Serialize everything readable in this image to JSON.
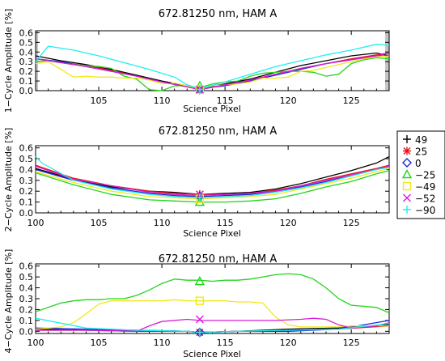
{
  "chart_data": [
    {
      "type": "line",
      "title": "672.81250 nm, HAM A",
      "xlabel": "Science Pixel",
      "ylabel": "1−Cycle Amplitude [%]",
      "xlim": [
        100,
        128
      ],
      "ylim": [
        0,
        0.62
      ],
      "xticks": [
        "105",
        "110",
        "115",
        "120",
        "125"
      ],
      "yticks": [
        "0.0",
        "0.1",
        "0.2",
        "0.3",
        "0.4",
        "0.5",
        "0.6"
      ],
      "series": [
        {
          "name": "49",
          "color": "#000000",
          "x": [
            100,
            102,
            104,
            106,
            108,
            110,
            112,
            113,
            115,
            117,
            119,
            121,
            123,
            125,
            127,
            128
          ],
          "y": [
            0.36,
            0.31,
            0.27,
            0.22,
            0.16,
            0.1,
            0.05,
            0.02,
            0.07,
            0.12,
            0.19,
            0.26,
            0.31,
            0.36,
            0.39,
            0.36
          ],
          "marker": {
            "x": 113,
            "y": 0.01
          }
        },
        {
          "name": "25",
          "color": "#e8121c",
          "x": [
            100,
            102,
            104,
            106,
            108,
            110,
            112,
            113,
            115,
            117,
            119,
            121,
            123,
            125,
            127,
            128
          ],
          "y": [
            0.33,
            0.29,
            0.26,
            0.21,
            0.15,
            0.09,
            0.04,
            0.01,
            0.06,
            0.11,
            0.17,
            0.23,
            0.28,
            0.33,
            0.37,
            0.39
          ],
          "marker": {
            "x": 113,
            "y": 0.01
          }
        },
        {
          "name": "0",
          "color": "#1a2ad8",
          "x": [
            100,
            102,
            104,
            106,
            108,
            110,
            112,
            113,
            115,
            117,
            119,
            121,
            123,
            125,
            127,
            128
          ],
          "y": [
            0.33,
            0.3,
            0.25,
            0.2,
            0.15,
            0.09,
            0.04,
            0.02,
            0.05,
            0.1,
            0.16,
            0.22,
            0.28,
            0.32,
            0.36,
            0.36
          ],
          "marker": {
            "x": 113,
            "y": 0.01
          }
        },
        {
          "name": "−25",
          "color": "#22d41c",
          "x": [
            100,
            101,
            103,
            105,
            106,
            107,
            108,
            109,
            110,
            111,
            112,
            113,
            114,
            115,
            116,
            117,
            118,
            119,
            120,
            121,
            122,
            123,
            124,
            125,
            126,
            127,
            128
          ],
          "y": [
            0.3,
            0.31,
            0.27,
            0.25,
            0.23,
            0.15,
            0.12,
            0.01,
            0.0,
            0.05,
            0.05,
            0.03,
            0.07,
            0.09,
            0.1,
            0.15,
            0.18,
            0.19,
            0.2,
            0.2,
            0.19,
            0.15,
            0.17,
            0.28,
            0.32,
            0.34,
            0.33
          ],
          "marker": {
            "x": 113,
            "y": 0.05
          }
        },
        {
          "name": "−49",
          "color": "#f3e818",
          "x": [
            100,
            101,
            102,
            103,
            104,
            105,
            106,
            107,
            108,
            109,
            110,
            111,
            112,
            113,
            114,
            115,
            116,
            117,
            118,
            119,
            120,
            121,
            122,
            123,
            124,
            125,
            126,
            127,
            128
          ],
          "y": [
            0.28,
            0.3,
            0.22,
            0.14,
            0.15,
            0.14,
            0.14,
            0.13,
            0.13,
            0.11,
            0.07,
            0.08,
            0.05,
            0.02,
            0.05,
            0.06,
            0.07,
            0.09,
            0.13,
            0.13,
            0.14,
            0.2,
            0.21,
            0.24,
            0.27,
            0.3,
            0.33,
            0.35,
            0.36
          ],
          "marker": {
            "x": 113,
            "y": 0.01
          }
        },
        {
          "name": "−52",
          "color": "#d81cd8",
          "x": [
            100,
            102,
            104,
            106,
            108,
            110,
            112,
            113,
            115,
            117,
            119,
            121,
            123,
            125,
            127,
            128
          ],
          "y": [
            0.33,
            0.29,
            0.25,
            0.2,
            0.15,
            0.09,
            0.04,
            0.01,
            0.06,
            0.11,
            0.17,
            0.23,
            0.28,
            0.32,
            0.36,
            0.39
          ],
          "marker": {
            "x": 113,
            "y": 0.01
          }
        },
        {
          "name": "−90",
          "color": "#1ef0f0",
          "x": [
            100,
            101,
            103,
            105,
            107,
            109,
            111,
            112,
            113,
            115,
            117,
            119,
            121,
            123,
            125,
            127,
            128
          ],
          "y": [
            0.3,
            0.46,
            0.42,
            0.36,
            0.29,
            0.22,
            0.14,
            0.06,
            0.02,
            0.09,
            0.17,
            0.25,
            0.31,
            0.37,
            0.42,
            0.48,
            0.47
          ],
          "marker": {
            "x": 113,
            "y": 0.01
          }
        }
      ]
    },
    {
      "type": "line",
      "title": "672.81250 nm, HAM A",
      "xlabel": "Science Pixel",
      "ylabel": "2−Cycle Amplitude [%]",
      "xlim": [
        100,
        128
      ],
      "ylim": [
        0,
        0.62
      ],
      "xticks": [
        "100",
        "105",
        "110",
        "115",
        "120",
        "125"
      ],
      "yticks": [
        "0.0",
        "0.1",
        "0.2",
        "0.3",
        "0.4",
        "0.5",
        "0.6"
      ],
      "series": [
        {
          "name": "49",
          "color": "#000000",
          "x": [
            100,
            103,
            106,
            109,
            111,
            113,
            115,
            117,
            119,
            121,
            123,
            125,
            127,
            128
          ],
          "y": [
            0.41,
            0.31,
            0.24,
            0.2,
            0.19,
            0.17,
            0.18,
            0.19,
            0.22,
            0.27,
            0.33,
            0.39,
            0.46,
            0.52
          ],
          "marker": {
            "x": 113,
            "y": 0.17
          }
        },
        {
          "name": "25",
          "color": "#e8121c",
          "x": [
            100,
            103,
            106,
            109,
            111,
            113,
            115,
            117,
            119,
            121,
            123,
            125,
            127,
            128
          ],
          "y": [
            0.44,
            0.32,
            0.25,
            0.2,
            0.18,
            0.17,
            0.17,
            0.18,
            0.21,
            0.25,
            0.31,
            0.36,
            0.41,
            0.44
          ],
          "marker": {
            "x": 113,
            "y": 0.17
          }
        },
        {
          "name": "0",
          "color": "#1a2ad8",
          "x": [
            100,
            103,
            106,
            109,
            111,
            113,
            115,
            117,
            119,
            121,
            123,
            125,
            127,
            128
          ],
          "y": [
            0.4,
            0.3,
            0.23,
            0.18,
            0.16,
            0.15,
            0.16,
            0.17,
            0.2,
            0.24,
            0.29,
            0.35,
            0.4,
            0.43
          ],
          "marker": {
            "x": 113,
            "y": 0.15
          }
        },
        {
          "name": "−25",
          "color": "#22d41c",
          "x": [
            100,
            103,
            106,
            109,
            111,
            113,
            115,
            117,
            119,
            121,
            123,
            125,
            127,
            128
          ],
          "y": [
            0.37,
            0.26,
            0.17,
            0.12,
            0.11,
            0.1,
            0.1,
            0.11,
            0.13,
            0.18,
            0.24,
            0.29,
            0.36,
            0.39
          ],
          "marker": {
            "x": 113,
            "y": 0.1
          }
        },
        {
          "name": "−49",
          "color": "#f3e818",
          "x": [
            100,
            103,
            106,
            109,
            111,
            113,
            115,
            117,
            119,
            121,
            123,
            125,
            127,
            128
          ],
          "y": [
            0.38,
            0.28,
            0.2,
            0.15,
            0.14,
            0.13,
            0.14,
            0.15,
            0.17,
            0.22,
            0.27,
            0.32,
            0.38,
            0.41
          ],
          "marker": {
            "x": 113,
            "y": 0.13
          }
        },
        {
          "name": "−52",
          "color": "#d81cd8",
          "x": [
            100,
            103,
            106,
            109,
            111,
            113,
            115,
            117,
            119,
            121,
            123,
            125,
            127,
            128
          ],
          "y": [
            0.43,
            0.31,
            0.25,
            0.19,
            0.17,
            0.16,
            0.17,
            0.18,
            0.2,
            0.25,
            0.3,
            0.35,
            0.4,
            0.43
          ],
          "marker": {
            "x": 113,
            "y": 0.17
          }
        },
        {
          "name": "−90",
          "color": "#1ef0f0",
          "x": [
            100,
            100.5,
            103,
            106,
            109,
            111,
            113,
            115,
            117,
            119,
            121,
            123,
            125,
            127,
            128
          ],
          "y": [
            0.52,
            0.46,
            0.3,
            0.22,
            0.17,
            0.15,
            0.14,
            0.15,
            0.16,
            0.19,
            0.23,
            0.28,
            0.34,
            0.4,
            0.42
          ],
          "marker": {
            "x": 113,
            "y": 0.14
          }
        }
      ]
    },
    {
      "type": "line",
      "title": "672.81250 nm, HAM A",
      "xlabel": "Science Pixel",
      "ylabel": "4−Cycle Amplitude [%]",
      "xlim": [
        100,
        128
      ],
      "ylim": [
        -0.02,
        0.62
      ],
      "xticks": [
        "100",
        "105",
        "110",
        "115",
        "120",
        "125"
      ],
      "yticks": [
        "0.0",
        "0.1",
        "0.2",
        "0.3",
        "0.4",
        "0.5",
        "0.6"
      ],
      "series": [
        {
          "name": "49",
          "color": "#000000",
          "x": [
            100,
            104,
            108,
            112,
            113,
            116,
            120,
            124,
            128
          ],
          "y": [
            0.02,
            0.01,
            0.01,
            0.0,
            -0.01,
            0.0,
            0.02,
            0.03,
            0.06
          ],
          "marker": {
            "x": 113,
            "y": -0.01
          }
        },
        {
          "name": "25",
          "color": "#e8121c",
          "x": [
            100,
            104,
            108,
            112,
            113,
            116,
            120,
            124,
            128
          ],
          "y": [
            0.01,
            0.01,
            0.0,
            0.0,
            -0.01,
            0.0,
            0.01,
            0.02,
            0.05
          ],
          "marker": {
            "x": 113,
            "y": -0.01
          }
        },
        {
          "name": "0",
          "color": "#1a2ad8",
          "x": [
            100,
            104,
            108,
            112,
            113,
            116,
            120,
            124,
            128
          ],
          "y": [
            0.03,
            0.02,
            0.01,
            0.0,
            -0.01,
            0.0,
            0.0,
            0.02,
            0.1
          ],
          "marker": {
            "x": 113,
            "y": -0.01
          }
        },
        {
          "name": "−25",
          "color": "#22d41c",
          "x": [
            100,
            101,
            102,
            103,
            104,
            105,
            106,
            107,
            108,
            109,
            110,
            111,
            112,
            113,
            114,
            115,
            116,
            117,
            118,
            119,
            120,
            121,
            122,
            123,
            124,
            125,
            126,
            127,
            128
          ],
          "y": [
            0.18,
            0.22,
            0.26,
            0.28,
            0.29,
            0.29,
            0.3,
            0.3,
            0.33,
            0.38,
            0.44,
            0.48,
            0.47,
            0.47,
            0.46,
            0.47,
            0.47,
            0.48,
            0.5,
            0.52,
            0.53,
            0.52,
            0.48,
            0.4,
            0.3,
            0.24,
            0.23,
            0.22,
            0.17
          ],
          "marker": {
            "x": 113,
            "y": 0.46
          }
        },
        {
          "name": "−49",
          "color": "#f3e818",
          "x": [
            100,
            101,
            102,
            103,
            104,
            105,
            106,
            107,
            108,
            109,
            110,
            111,
            112,
            113,
            114,
            115,
            116,
            117,
            118,
            119,
            120,
            121,
            122,
            123,
            124,
            125,
            126,
            127,
            128
          ],
          "y": [
            0.02,
            0.03,
            0.04,
            0.08,
            0.16,
            0.25,
            0.28,
            0.28,
            0.28,
            0.28,
            0.28,
            0.29,
            0.28,
            0.28,
            0.28,
            0.28,
            0.27,
            0.27,
            0.26,
            0.13,
            0.06,
            0.04,
            0.04,
            0.04,
            0.04,
            0.05,
            0.05,
            0.05,
            0.05
          ],
          "marker": {
            "x": 113,
            "y": 0.28
          }
        },
        {
          "name": "−52",
          "color": "#d81cd8",
          "x": [
            100,
            104,
            108,
            109,
            110,
            112,
            113,
            115,
            117,
            119,
            121,
            122,
            123,
            124,
            125,
            126,
            127,
            128
          ],
          "y": [
            0.01,
            0.01,
            0.0,
            0.05,
            0.09,
            0.11,
            0.1,
            0.1,
            0.1,
            0.1,
            0.11,
            0.12,
            0.11,
            0.06,
            0.03,
            0.04,
            0.05,
            0.08
          ],
          "marker": {
            "x": 113,
            "y": 0.11
          }
        },
        {
          "name": "−90",
          "color": "#1ef0f0",
          "x": [
            100,
            104,
            108,
            112,
            113,
            116,
            120,
            124,
            128
          ],
          "y": [
            0.12,
            0.03,
            0.01,
            0.0,
            -0.01,
            0.0,
            0.01,
            0.02,
            0.07
          ],
          "marker": {
            "x": 113,
            "y": -0.01
          }
        }
      ]
    }
  ],
  "legend": {
    "placement": "right",
    "entries": [
      {
        "symbol": "+",
        "label": "49",
        "color": "#000000"
      },
      {
        "symbol": "✳",
        "label": "25",
        "color": "#e8121c"
      },
      {
        "symbol": "◇",
        "label": "0",
        "color": "#1a2ad8"
      },
      {
        "symbol": "△",
        "label": "−25",
        "color": "#22d41c"
      },
      {
        "symbol": "□",
        "label": "−49",
        "color": "#f3e818"
      },
      {
        "symbol": "×",
        "label": "−52",
        "color": "#d81cd8"
      },
      {
        "symbol": "+",
        "label": "−90",
        "color": "#1ef0f0"
      }
    ]
  }
}
